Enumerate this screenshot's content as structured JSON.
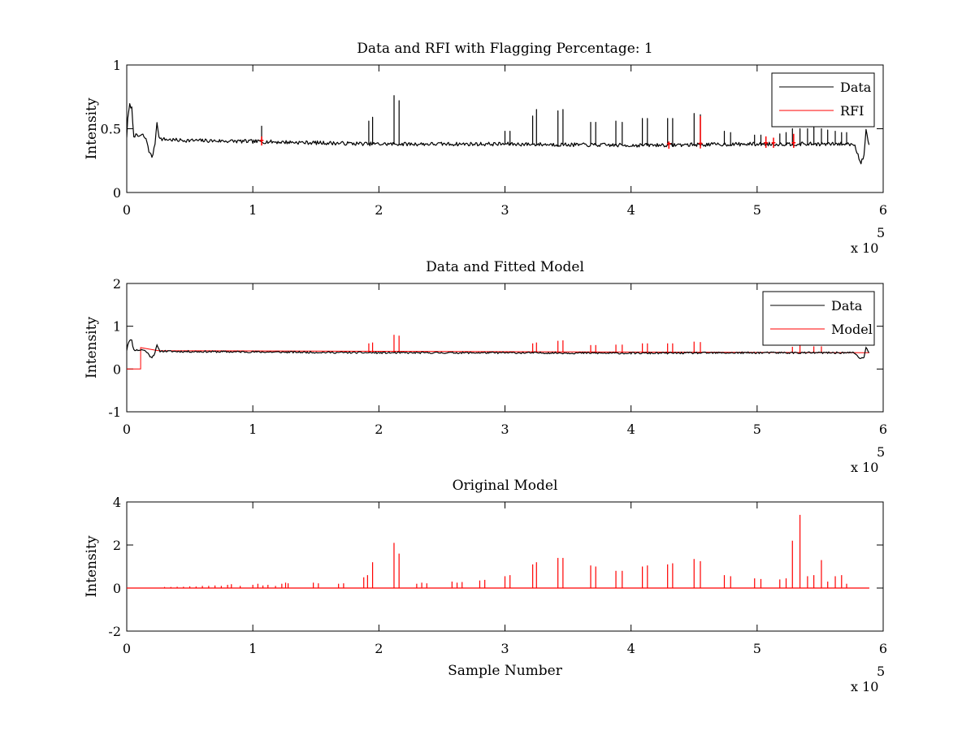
{
  "colors": {
    "data": "#000000",
    "red": "#ff0000",
    "background": "#ffffff",
    "axes": "#000000"
  },
  "chart_data": [
    {
      "type": "line",
      "title": "Data and RFI with Flagging Percentage: 1",
      "xlabel": "",
      "ylabel": "Intensity",
      "xlim": [
        0,
        600000
      ],
      "ylim": [
        0,
        1
      ],
      "xticks": [
        "0",
        "1",
        "2",
        "3",
        "4",
        "5",
        "6"
      ],
      "yticks": [
        "0",
        "0.5",
        "1"
      ],
      "x_multiplier": {
        "prefix": "x 10",
        "exponent": "5"
      },
      "legend": {
        "position": "top-right",
        "entries": [
          "Data",
          "RFI"
        ]
      },
      "series": [
        {
          "name": "Data",
          "color": "#000000",
          "baseline": [
            [
              0,
              0.44
            ],
            [
              1000,
              0.6
            ],
            [
              2500,
              0.69
            ],
            [
              4000,
              0.66
            ],
            [
              5500,
              0.45
            ],
            [
              9000,
              0.44
            ],
            [
              13000,
              0.45
            ],
            [
              16000,
              0.4
            ],
            [
              18000,
              0.31
            ],
            [
              20000,
              0.28
            ],
            [
              22000,
              0.35
            ],
            [
              24000,
              0.55
            ],
            [
              26000,
              0.42
            ],
            [
              40000,
              0.41
            ],
            [
              100000,
              0.4
            ],
            [
              200000,
              0.38
            ],
            [
              300000,
              0.38
            ],
            [
              400000,
              0.37
            ],
            [
              500000,
              0.38
            ],
            [
              560000,
              0.38
            ],
            [
              577000,
              0.38
            ],
            [
              580000,
              0.3
            ],
            [
              582000,
              0.23
            ],
            [
              585000,
              0.29
            ],
            [
              586500,
              0.52
            ],
            [
              587500,
              0.43
            ],
            [
              589000,
              0.37
            ]
          ],
          "spikes": [
            [
              107000,
              0.52
            ],
            [
              192000,
              0.56
            ],
            [
              195000,
              0.59
            ],
            [
              212000,
              0.76
            ],
            [
              216000,
              0.72
            ],
            [
              300000,
              0.48
            ],
            [
              304000,
              0.48
            ],
            [
              322000,
              0.6
            ],
            [
              325000,
              0.65
            ],
            [
              342000,
              0.64
            ],
            [
              346000,
              0.65
            ],
            [
              368000,
              0.55
            ],
            [
              372000,
              0.55
            ],
            [
              388000,
              0.56
            ],
            [
              393000,
              0.55
            ],
            [
              409000,
              0.58
            ],
            [
              413000,
              0.58
            ],
            [
              429000,
              0.58
            ],
            [
              433000,
              0.58
            ],
            [
              450000,
              0.62
            ],
            [
              455000,
              0.61
            ],
            [
              474000,
              0.48
            ],
            [
              479000,
              0.47
            ],
            [
              498000,
              0.45
            ],
            [
              503000,
              0.45
            ],
            [
              518000,
              0.46
            ],
            [
              523000,
              0.47
            ],
            [
              528000,
              0.5
            ],
            [
              534000,
              0.5
            ],
            [
              540000,
              0.5
            ],
            [
              545000,
              0.51
            ],
            [
              551000,
              0.5
            ],
            [
              556000,
              0.49
            ],
            [
              562000,
              0.48
            ],
            [
              567000,
              0.47
            ],
            [
              571000,
              0.47
            ]
          ]
        },
        {
          "name": "RFI",
          "color": "#ff0000",
          "points": [
            [
              107000,
              0.44
            ],
            [
              430000,
              0.4
            ],
            [
              455000,
              0.6
            ],
            [
              507000,
              0.44
            ],
            [
              513000,
              0.43
            ],
            [
              529000,
              0.46
            ]
          ]
        }
      ]
    },
    {
      "type": "line",
      "title": "Data and Fitted Model",
      "xlabel": "",
      "ylabel": "Intensity",
      "xlim": [
        0,
        600000
      ],
      "ylim": [
        -1,
        2
      ],
      "xticks": [
        "0",
        "1",
        "2",
        "3",
        "4",
        "5",
        "6"
      ],
      "yticks": [
        "-1",
        "0",
        "1",
        "2"
      ],
      "x_multiplier": {
        "prefix": "x 10",
        "exponent": "5"
      },
      "legend": {
        "position": "top-right",
        "entries": [
          "Data",
          "Model"
        ]
      },
      "series": [
        {
          "name": "Data",
          "color": "#000000"
        },
        {
          "name": "Model",
          "color": "#ff0000",
          "step": [
            [
              0,
              0
            ],
            [
              11000,
              0
            ],
            [
              11000,
              0.5
            ],
            [
              25000,
              0.43
            ],
            [
              589000,
              0.38
            ]
          ],
          "spikes": [
            [
              192000,
              0.6
            ],
            [
              195000,
              0.62
            ],
            [
              212000,
              0.8
            ],
            [
              216000,
              0.78
            ],
            [
              322000,
              0.6
            ],
            [
              325000,
              0.62
            ],
            [
              342000,
              0.66
            ],
            [
              346000,
              0.67
            ],
            [
              368000,
              0.56
            ],
            [
              372000,
              0.56
            ],
            [
              388000,
              0.57
            ],
            [
              393000,
              0.57
            ],
            [
              409000,
              0.6
            ],
            [
              413000,
              0.6
            ],
            [
              429000,
              0.6
            ],
            [
              433000,
              0.6
            ],
            [
              450000,
              0.64
            ],
            [
              455000,
              0.63
            ],
            [
              528000,
              0.52
            ],
            [
              534000,
              0.55
            ],
            [
              545000,
              0.53
            ],
            [
              551000,
              0.53
            ]
          ]
        }
      ]
    },
    {
      "type": "line",
      "title": "Original Model",
      "xlabel": "Sample Number",
      "ylabel": "Intensity",
      "xlim": [
        0,
        600000
      ],
      "ylim": [
        -2,
        4
      ],
      "xticks": [
        "0",
        "1",
        "2",
        "3",
        "4",
        "5",
        "6"
      ],
      "yticks": [
        "-2",
        "0",
        "2",
        "4"
      ],
      "x_multiplier": {
        "prefix": "x 10",
        "exponent": "5"
      },
      "series": [
        {
          "name": "Original Model",
          "color": "#ff0000",
          "range": [
            0,
            589000
          ],
          "spikes": [
            [
              30000,
              0.05
            ],
            [
              35000,
              0.05
            ],
            [
              40000,
              0.06
            ],
            [
              45000,
              0.06
            ],
            [
              50000,
              0.08
            ],
            [
              55000,
              0.07
            ],
            [
              60000,
              0.1
            ],
            [
              65000,
              0.1
            ],
            [
              70000,
              0.12
            ],
            [
              75000,
              0.1
            ],
            [
              80000,
              0.15
            ],
            [
              83000,
              0.18
            ],
            [
              90000,
              0.1
            ],
            [
              100000,
              0.15
            ],
            [
              104000,
              0.2
            ],
            [
              108000,
              0.12
            ],
            [
              112000,
              0.15
            ],
            [
              118000,
              0.1
            ],
            [
              123000,
              0.2
            ],
            [
              126000,
              0.25
            ],
            [
              128000,
              0.22
            ],
            [
              148000,
              0.25
            ],
            [
              152000,
              0.22
            ],
            [
              168000,
              0.2
            ],
            [
              172000,
              0.22
            ],
            [
              188000,
              0.5
            ],
            [
              191000,
              0.6
            ],
            [
              195000,
              1.2
            ],
            [
              212000,
              2.1
            ],
            [
              216000,
              1.6
            ],
            [
              230000,
              0.2
            ],
            [
              234000,
              0.25
            ],
            [
              238000,
              0.22
            ],
            [
              258000,
              0.3
            ],
            [
              262000,
              0.25
            ],
            [
              266000,
              0.28
            ],
            [
              280000,
              0.35
            ],
            [
              284000,
              0.38
            ],
            [
              300000,
              0.55
            ],
            [
              304000,
              0.6
            ],
            [
              322000,
              1.1
            ],
            [
              325000,
              1.2
            ],
            [
              342000,
              1.4
            ],
            [
              346000,
              1.4
            ],
            [
              368000,
              1.05
            ],
            [
              372000,
              1
            ],
            [
              388000,
              0.8
            ],
            [
              393000,
              0.8
            ],
            [
              409000,
              1
            ],
            [
              413000,
              1.05
            ],
            [
              429000,
              1.1
            ],
            [
              433000,
              1.15
            ],
            [
              450000,
              1.35
            ],
            [
              455000,
              1.25
            ],
            [
              474000,
              0.6
            ],
            [
              479000,
              0.55
            ],
            [
              498000,
              0.45
            ],
            [
              503000,
              0.42
            ],
            [
              518000,
              0.4
            ],
            [
              523000,
              0.45
            ],
            [
              528000,
              2.2
            ],
            [
              534000,
              3.4
            ],
            [
              540000,
              0.55
            ],
            [
              545000,
              0.6
            ],
            [
              551000,
              1.3
            ],
            [
              556000,
              0.3
            ],
            [
              562000,
              0.55
            ],
            [
              567000,
              0.6
            ],
            [
              571000,
              0.2
            ]
          ]
        }
      ]
    }
  ]
}
